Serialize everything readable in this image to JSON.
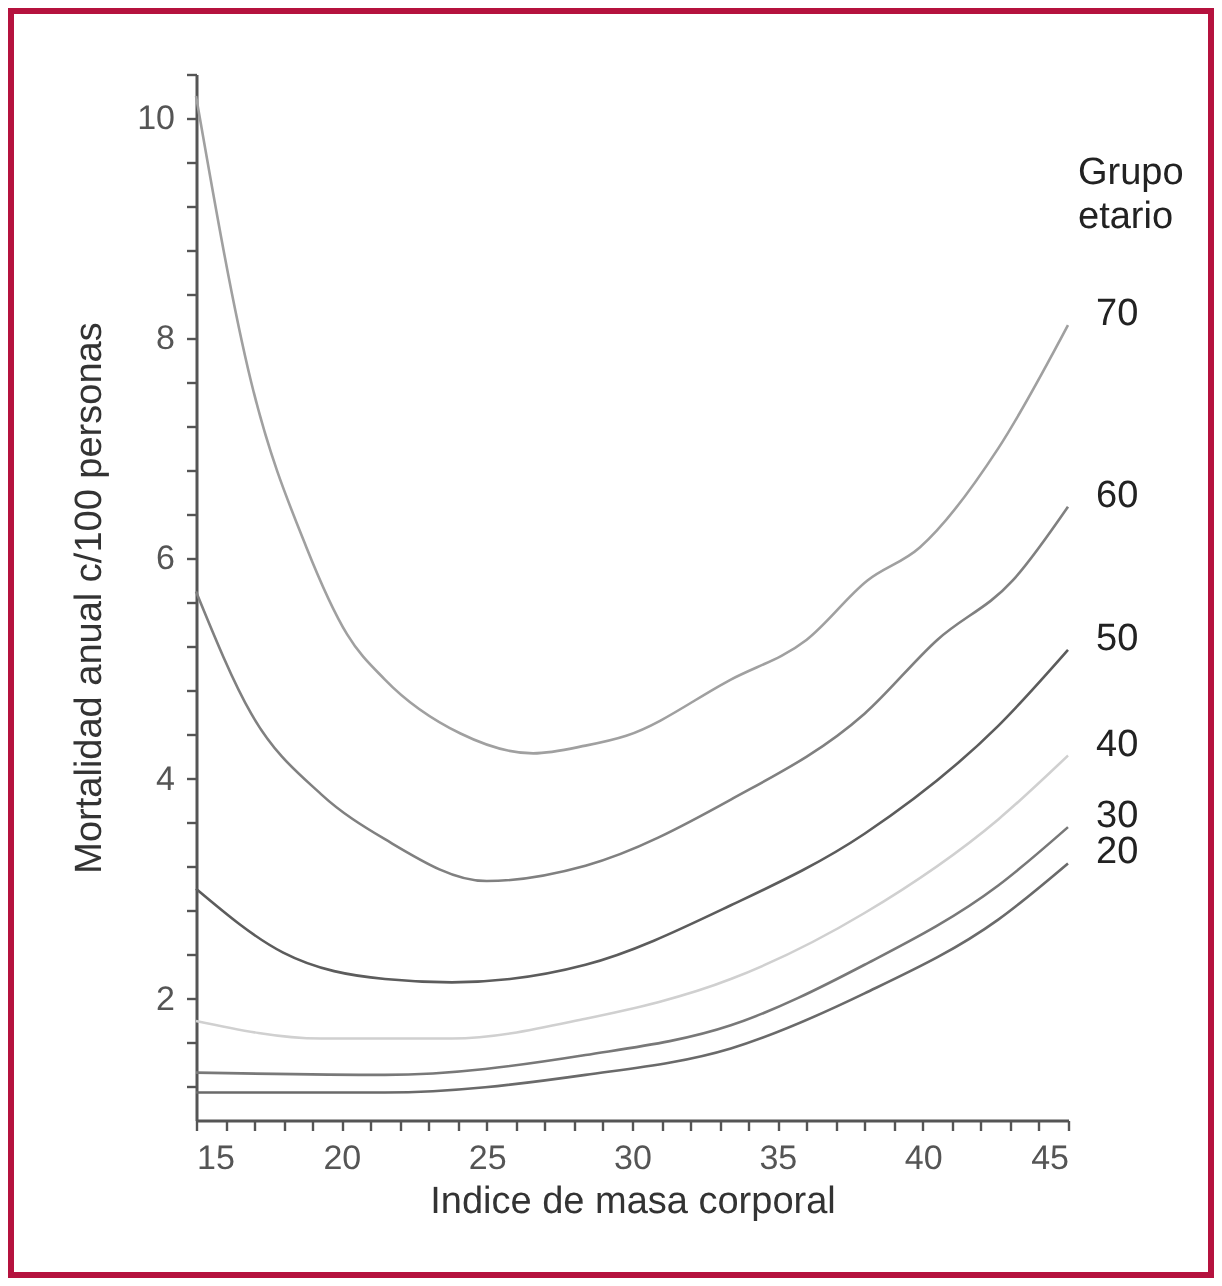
{
  "chart_data": {
    "type": "line",
    "xlabel": "Indice de masa corporal",
    "ylabel": "Mortalidad anual c/100 personas",
    "legend_title": "Grupo etario",
    "xlim": [
      15,
      45
    ],
    "ylim": [
      0.9,
      10.4
    ],
    "xticks": [
      15,
      {
        "value": 16,
        "label": null
      },
      {
        "value": 17,
        "label": null
      },
      {
        "value": 18,
        "label": null
      },
      {
        "value": 19,
        "label": null
      },
      20,
      {
        "value": 21,
        "label": null
      },
      {
        "value": 22,
        "label": null
      },
      {
        "value": 23,
        "label": null
      },
      {
        "value": 24,
        "label": null
      },
      25,
      {
        "value": 26,
        "label": null
      },
      {
        "value": 27,
        "label": null
      },
      {
        "value": 28,
        "label": null
      },
      {
        "value": 29,
        "label": null
      },
      30,
      {
        "value": 31,
        "label": null
      },
      {
        "value": 32,
        "label": null
      },
      {
        "value": 33,
        "label": null
      },
      {
        "value": 34,
        "label": null
      },
      35,
      {
        "value": 36,
        "label": null
      },
      {
        "value": 37,
        "label": null
      },
      {
        "value": 38,
        "label": null
      },
      {
        "value": 39,
        "label": null
      },
      40,
      {
        "value": 41,
        "label": null
      },
      {
        "value": 42,
        "label": null
      },
      {
        "value": 43,
        "label": null
      },
      {
        "value": 44,
        "label": null
      },
      45
    ],
    "yticks": [
      {
        "value": 1.2,
        "label": null
      },
      {
        "value": 1.6,
        "label": null
      },
      2,
      {
        "value": 2.4,
        "label": null
      },
      {
        "value": 2.8,
        "label": null
      },
      {
        "value": 3.2,
        "label": null
      },
      {
        "value": 3.6,
        "label": null
      },
      4,
      {
        "value": 4.4,
        "label": null
      },
      {
        "value": 4.8,
        "label": null
      },
      {
        "value": 5.2,
        "label": null
      },
      {
        "value": 5.6,
        "label": null
      },
      6,
      {
        "value": 6.4,
        "label": null
      },
      {
        "value": 6.8,
        "label": null
      },
      {
        "value": 7.2,
        "label": null
      },
      {
        "value": 7.6,
        "label": null
      },
      8,
      {
        "value": 8.4,
        "label": null
      },
      {
        "value": 8.8,
        "label": null
      },
      {
        "value": 9.2,
        "label": null
      },
      {
        "value": 9.6,
        "label": null
      },
      10,
      {
        "value": 10.4,
        "label": null
      }
    ],
    "grid": false,
    "legend": false,
    "marker": "none",
    "line_style": "solid",
    "series": [
      {
        "name": "70",
        "color": "#a0a0a0",
        "x": [
          15,
          16.9,
          18.8,
          20.2,
          21.5,
          24.1,
          26.6,
          28.4,
          29.8,
          33.4,
          36,
          38.1,
          39.9,
          42.6,
          45
        ],
        "values": [
          10.2,
          7.6,
          6.1,
          5.31,
          4.9,
          4.41,
          4.23,
          4.3,
          4.39,
          4.9,
          5.26,
          5.8,
          6.1,
          7.0,
          8.12
        ]
      },
      {
        "name": "60",
        "color": "#808080",
        "x": [
          15,
          16.9,
          19.3,
          21.5,
          25,
          28.4,
          33.4,
          38,
          40.5,
          43.1,
          45
        ],
        "values": [
          5.7,
          4.59,
          3.86,
          3.45,
          3.07,
          3.21,
          3.81,
          4.59,
          5.26,
          5.8,
          6.47
        ]
      },
      {
        "name": "50",
        "color": "#5c5c5c",
        "x": [
          15,
          18,
          21.5,
          23.8,
          28.4,
          33.4,
          38,
          42.6,
          45
        ],
        "values": [
          3.0,
          2.42,
          2.18,
          2.15,
          2.31,
          2.85,
          3.5,
          4.48,
          5.17
        ]
      },
      {
        "name": "40",
        "color": "#d0d0d0",
        "x": [
          15,
          19.3,
          23.8,
          28.4,
          33.4,
          38,
          42.6,
          45
        ],
        "values": [
          1.8,
          1.64,
          1.64,
          1.82,
          2.18,
          2.78,
          3.63,
          4.21
        ]
      },
      {
        "name": "30",
        "color": "#787878",
        "x": [
          15,
          21.5,
          28.4,
          33.4,
          38,
          42.6,
          45
        ],
        "values": [
          1.33,
          1.31,
          1.49,
          1.76,
          2.31,
          3.03,
          3.56
        ]
      },
      {
        "name": "20",
        "color": "#6a6a6a",
        "x": [
          15,
          21.5,
          28.4,
          33.4,
          38,
          42.6,
          45
        ],
        "values": [
          1.15,
          1.15,
          1.31,
          1.55,
          2.05,
          2.72,
          3.23
        ]
      }
    ]
  }
}
